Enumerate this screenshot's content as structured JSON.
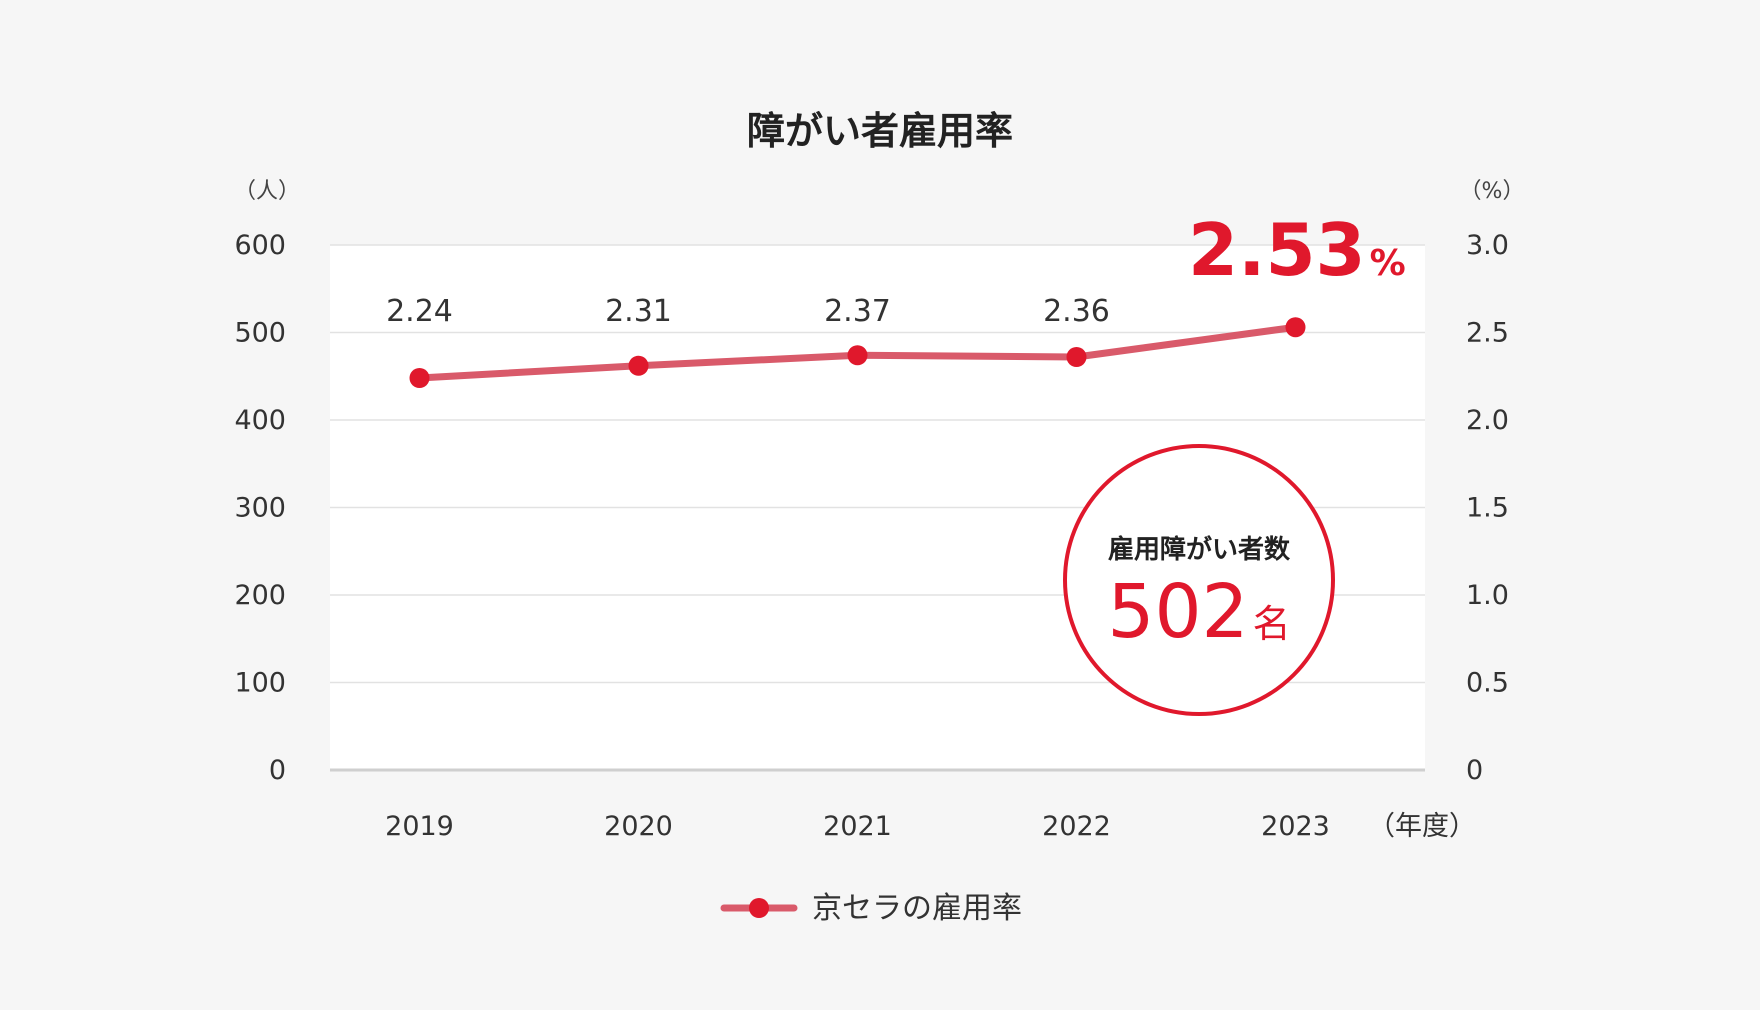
{
  "chart_data": {
    "type": "line",
    "title": "障がい者雇用率",
    "left_axis_unit": "（人）",
    "right_axis_unit": "（%）",
    "x_axis_unit": "（年度）",
    "categories": [
      "2019",
      "2020",
      "2021",
      "2022",
      "2023"
    ],
    "left_ticks": [
      "600",
      "500",
      "400",
      "300",
      "200",
      "100",
      "0"
    ],
    "right_ticks": [
      "3.0",
      "2.5",
      "2.0",
      "1.5",
      "1.0",
      "0.5",
      "0"
    ],
    "ylim_left": [
      0,
      600
    ],
    "ylim_right": [
      0,
      3.0
    ],
    "grid": true,
    "series": [
      {
        "name": "京セラの雇用率",
        "axis": "right",
        "values": [
          2.24,
          2.31,
          2.37,
          2.36,
          2.53
        ],
        "labels": [
          "2.24",
          "2.31",
          "2.37",
          "2.36",
          ""
        ],
        "color": "#d95a6a",
        "marker_color": "#e0182c"
      }
    ],
    "highlight": {
      "value": "2.53",
      "unit": "%"
    },
    "badge": {
      "label": "雇用障がい者数",
      "value": "502",
      "unit": "名"
    },
    "legend": {
      "position": "bottom-center"
    }
  }
}
